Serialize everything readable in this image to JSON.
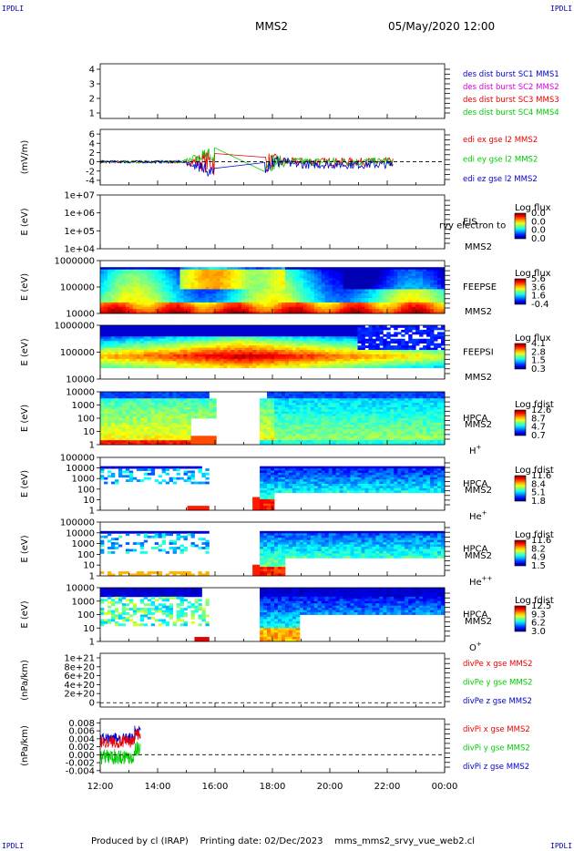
{
  "header": {
    "corner_tl": "IPDLI",
    "corner_tr": "IPDLI",
    "corner_bl": "IPDLI",
    "corner_br": "IPDLI",
    "title": "MMS2",
    "date": "05/May/2020 12:00"
  },
  "footer": {
    "producer": "Produced by cl (IRAP)",
    "printing_date": "Printing date: 02/Dec/2023",
    "file": "mms_mms2_srvy_vue_web2.cl"
  },
  "colors": {
    "blue": "#0000cc",
    "magenta": "#dd00dd",
    "red": "#ee0000",
    "green": "#00cc00"
  },
  "chart_data": {
    "type": "multi-panel time series",
    "x_range": [
      "12:00",
      "00:00"
    ],
    "x_ticks": [
      "12:00",
      "14:00",
      "16:00",
      "18:00",
      "20:00",
      "22:00",
      "00:00"
    ],
    "panels": [
      {
        "id": "des-dist",
        "type": "line",
        "ylabel": "",
        "yticks": [
          "1",
          "2",
          "3",
          "4"
        ],
        "legend": [
          "des dist burst SC1 MMS1",
          "des dist burst SC2 MMS2",
          "des dist burst SC3 MMS3",
          "des dist burst SC4 MMS4"
        ],
        "legend_colors": [
          "#0000cc",
          "#dd00dd",
          "#ee0000",
          "#00cc00"
        ]
      },
      {
        "id": "edi",
        "type": "line",
        "ylabel": "(mV/m)",
        "yticks": [
          "6",
          "4",
          "2",
          "0",
          "-2",
          "-4"
        ],
        "ylim": [
          -5,
          7
        ],
        "zero_line": true,
        "legend": [
          "edi ex gse l2 MMS2",
          "edi ey gse l2 MMS2",
          "edi ez gse l2 MMS2"
        ],
        "legend_colors": [
          "#ee0000",
          "#00cc00",
          "#0000cc"
        ]
      },
      {
        "id": "eis",
        "type": "heatmap",
        "ylabel": "E (eV)",
        "yticks": [
          "1e+07",
          "1e+06",
          "1e+05",
          "1e+04"
        ],
        "labels": [
          "EIS",
          "MMS2"
        ],
        "overlay": "rvy electron to",
        "cbar_title": "Log flux",
        "cbar_ticks": [
          "0.0",
          "0.0",
          "0.0",
          "0.0"
        ]
      },
      {
        "id": "feepse",
        "type": "heatmap",
        "ylabel": "E (eV)",
        "yticks": [
          "1000000",
          "100000",
          "10000"
        ],
        "labels": [
          "FEEPSE",
          "MMS2"
        ],
        "cbar_title": "Log flux",
        "cbar_ticks": [
          "5.6",
          "3.6",
          "1.6",
          "-0.4"
        ]
      },
      {
        "id": "feepsi",
        "type": "heatmap",
        "ylabel": "E (eV)",
        "yticks": [
          "1000000",
          "100000",
          "10000"
        ],
        "labels": [
          "FEEPSI",
          "MMS2"
        ],
        "cbar_title": "Log flux",
        "cbar_ticks": [
          "4.1",
          "2.8",
          "1.5",
          "0.3"
        ]
      },
      {
        "id": "hpca-h",
        "type": "heatmap",
        "ylabel": "E (eV)",
        "yticks": [
          "10000",
          "1000",
          "100",
          "10",
          "1"
        ],
        "labels": [
          "HPCA",
          "MMS2"
        ],
        "species": "H",
        "species_sup": "+",
        "cbar_title": "Log fdist",
        "cbar_ticks": [
          "12.6",
          "8.7",
          "4.7",
          "0.7"
        ]
      },
      {
        "id": "hpca-he",
        "type": "heatmap",
        "ylabel": "E (eV)",
        "yticks": [
          "100000",
          "10000",
          "1000",
          "100",
          "10",
          "1"
        ],
        "labels": [
          "HPCA",
          "MMS2"
        ],
        "species": "He",
        "species_sup": "+",
        "cbar_title": "Log fdist",
        "cbar_ticks": [
          "11.6",
          "8.4",
          "5.1",
          "1.8"
        ]
      },
      {
        "id": "hpca-hepp",
        "type": "heatmap",
        "ylabel": "E (eV)",
        "yticks": [
          "100000",
          "10000",
          "1000",
          "100",
          "10",
          "1"
        ],
        "labels": [
          "HPCA",
          "MMS2"
        ],
        "species": "He",
        "species_sup": "++",
        "cbar_title": "Log fdist",
        "cbar_ticks": [
          "11.6",
          "8.2",
          "4.9",
          "1.5"
        ]
      },
      {
        "id": "hpca-o",
        "type": "heatmap",
        "ylabel": "E (eV)",
        "yticks": [
          "10000",
          "1000",
          "100",
          "10",
          "1"
        ],
        "labels": [
          "HPCA",
          "MMS2"
        ],
        "species": "O",
        "species_sup": "+",
        "cbar_title": "Log fdist",
        "cbar_ticks": [
          "12.5",
          "9.3",
          "6.2",
          "3.0"
        ]
      },
      {
        "id": "divpe",
        "type": "line",
        "ylabel": "(nPa/km)",
        "yticks": [
          "1e+21",
          "8e+20",
          "6e+20",
          "4e+20",
          "2e+20",
          "0"
        ],
        "zero_line": true,
        "legend": [
          "divPe x gse MMS2",
          "divPe y gse MMS2",
          "divPe z gse MMS2"
        ],
        "legend_colors": [
          "#ee0000",
          "#00cc00",
          "#0000cc"
        ]
      },
      {
        "id": "divpi",
        "type": "line",
        "ylabel": "(nPa/km)",
        "yticks": [
          "0.008",
          "0.006",
          "0.004",
          "0.002",
          "0.000",
          "-0.002",
          "-0.004"
        ],
        "ylim": [
          -0.0045,
          0.009
        ],
        "zero_line": true,
        "legend": [
          "divPi x gse MMS2",
          "divPi y gse MMS2",
          "divPi z gse MMS2"
        ],
        "legend_colors": [
          "#ee0000",
          "#00cc00",
          "#0000cc"
        ]
      }
    ]
  }
}
